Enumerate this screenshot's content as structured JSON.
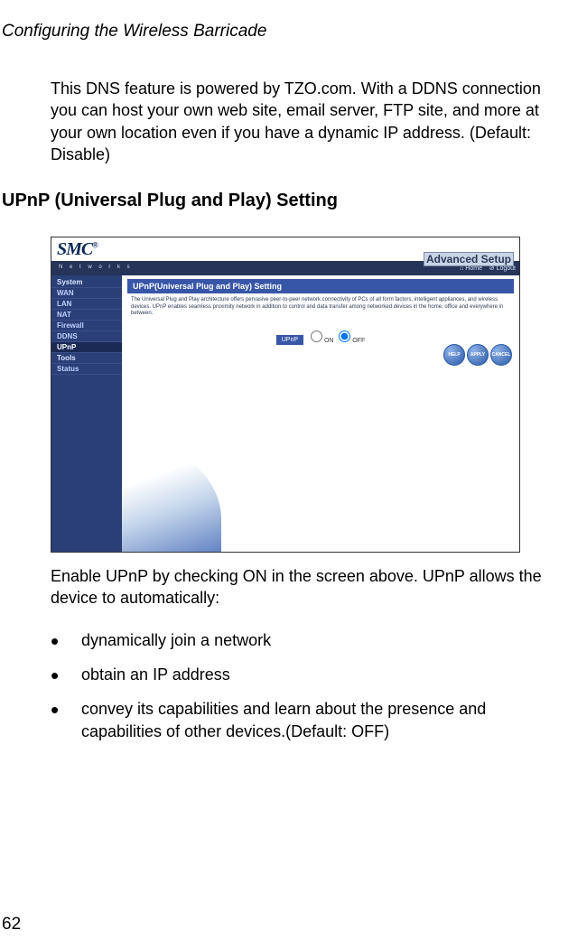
{
  "page": {
    "header": "Configuring the Wireless Barricade",
    "intro": "This DNS feature is powered by TZO.com. With a DDNS connection you can host your own web site, email server, FTP site, and more at your own location even if you have a dynamic IP address. (Default: Disable)",
    "section_heading": "UPnP (Universal Plug and Play) Setting",
    "caption": "Enable UPnP by checking ON in the screen above. UPnP allows the device to automatically:",
    "bullets": [
      "dynamically join a network",
      "obtain an IP address",
      "convey its capabilities and learn about the presence and capabilities of other devices.(Default: OFF)"
    ],
    "page_number": "62"
  },
  "screenshot": {
    "logo_text": "SMC",
    "logo_reg": "®",
    "networks_label": "N e t w o r k s",
    "advanced_watermark": "Advanced Setup",
    "advanced_box": "Advanced Setup",
    "nav_home": "⌂ Home",
    "nav_logout": "⊘ Logout",
    "sidebar": {
      "items": [
        {
          "label": "System"
        },
        {
          "label": "WAN"
        },
        {
          "label": "LAN"
        },
        {
          "label": "NAT"
        },
        {
          "label": "Firewall"
        },
        {
          "label": "DDNS"
        },
        {
          "label": "UPnP"
        },
        {
          "label": "Tools"
        },
        {
          "label": "Status"
        }
      ]
    },
    "panel_title": "UPnP(Universal Plug and Play) Setting",
    "panel_desc": "The Universal Plug and Play architecture offers pervasive peer-to-peer network connectivity of PCs of all form factors, intelligent appliances, and wireless devices. UPnP enables seamless proximity network in addition to control and data transfer among networked devices in the home, office and everywhere in between.",
    "radio": {
      "badge": "UPnP",
      "on": "ON",
      "off": "OFF"
    },
    "buttons": {
      "help": "HELP",
      "apply": "APPLY",
      "cancel": "CANCEL"
    },
    "colors": {
      "sidebar_bg": "#2b3f77",
      "panel_title_bg": "#3856a8",
      "button_bg": "#2a5aa8"
    }
  }
}
